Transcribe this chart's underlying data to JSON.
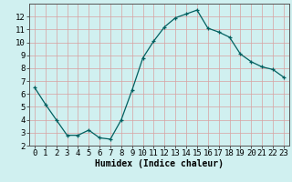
{
  "x": [
    0,
    1,
    2,
    3,
    4,
    5,
    6,
    7,
    8,
    9,
    10,
    11,
    12,
    13,
    14,
    15,
    16,
    17,
    18,
    19,
    20,
    21,
    22,
    23
  ],
  "y": [
    6.5,
    5.2,
    4.0,
    2.8,
    2.8,
    3.2,
    2.6,
    2.5,
    4.0,
    6.3,
    8.8,
    10.1,
    11.2,
    11.9,
    12.2,
    12.5,
    11.1,
    10.8,
    10.4,
    9.1,
    8.5,
    8.1,
    7.9,
    7.3
  ],
  "xlabel": "Humidex (Indice chaleur)",
  "line_color": "#006060",
  "marker_color": "#006060",
  "bg_color": "#d0f0f0",
  "grid_color": "#d8a0a0",
  "xlim": [
    -0.5,
    23.5
  ],
  "ylim": [
    2,
    13
  ],
  "xticks": [
    0,
    1,
    2,
    3,
    4,
    5,
    6,
    7,
    8,
    9,
    10,
    11,
    12,
    13,
    14,
    15,
    16,
    17,
    18,
    19,
    20,
    21,
    22,
    23
  ],
  "yticks": [
    2,
    3,
    4,
    5,
    6,
    7,
    8,
    9,
    10,
    11,
    12
  ],
  "xlabel_fontsize": 7,
  "tick_fontsize": 6.5
}
